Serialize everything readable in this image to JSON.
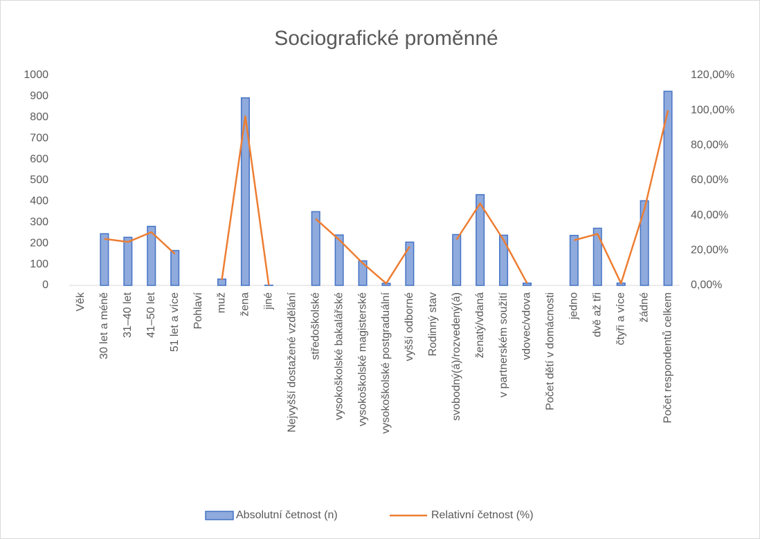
{
  "chart_data": {
    "type": "bar-line",
    "title": "Sociografické proměnné",
    "categories": [
      "Věk",
      "30 let a méně",
      "31–40 let",
      "41–50 let",
      "51 let a více",
      "Pohlaví",
      "muž",
      "žena",
      "jiné",
      "Nejvyšší dostažené vzdělání",
      "středoškolské",
      "vysokoškolské bakalářské",
      "vysokoškolské magisterské",
      "vysokoškolské postgraduální",
      "vyšší odborné",
      "Rodinný stav",
      "svobodný(á)/rozvedený(á)",
      "ženatý/vdaná",
      "v partnerském soužití",
      "vdovec/vdova",
      "Počet dětí v domácnosti",
      "jedno",
      "dvě až tři",
      "čtyři a více",
      "žádné",
      "Počet respondentů celkem"
    ],
    "series": [
      {
        "name": "Absolutní četnost (n)",
        "kind": "bar",
        "color": "#8faadc",
        "edge": "#4472c4",
        "values": [
          null,
          246,
          229,
          281,
          166,
          null,
          30,
          893,
          1,
          null,
          351,
          240,
          117,
          10,
          206,
          null,
          242,
          432,
          239,
          11,
          null,
          238,
          272,
          11,
          403,
          924
        ]
      },
      {
        "name": "Relativní četnost (%)",
        "kind": "line",
        "axis": "y2",
        "color": "#ed7d31",
        "values": [
          null,
          26.6,
          24.8,
          30.4,
          18.0,
          null,
          3.2,
          96.6,
          0.1,
          null,
          38.0,
          26.0,
          12.7,
          1.1,
          22.3,
          null,
          26.2,
          46.8,
          25.9,
          1.2,
          null,
          25.8,
          29.4,
          1.2,
          43.6,
          100
        ]
      }
    ],
    "ylim": [
      0,
      1000
    ],
    "yticks": [
      0,
      100,
      200,
      300,
      400,
      500,
      600,
      700,
      800,
      900,
      1000
    ],
    "y2lim": [
      0,
      120
    ],
    "y2ticks": [
      {
        "value": 0,
        "label": "0,00%"
      },
      {
        "value": 20,
        "label": "20,00%"
      },
      {
        "value": 40,
        "label": "40,00%"
      },
      {
        "value": 60,
        "label": "60,00%"
      },
      {
        "value": 80,
        "label": "80,00%"
      },
      {
        "value": 100,
        "label": "100,00%"
      },
      {
        "value": 120,
        "label": "120,00%"
      }
    ],
    "grid": false,
    "legend": "bottom"
  }
}
